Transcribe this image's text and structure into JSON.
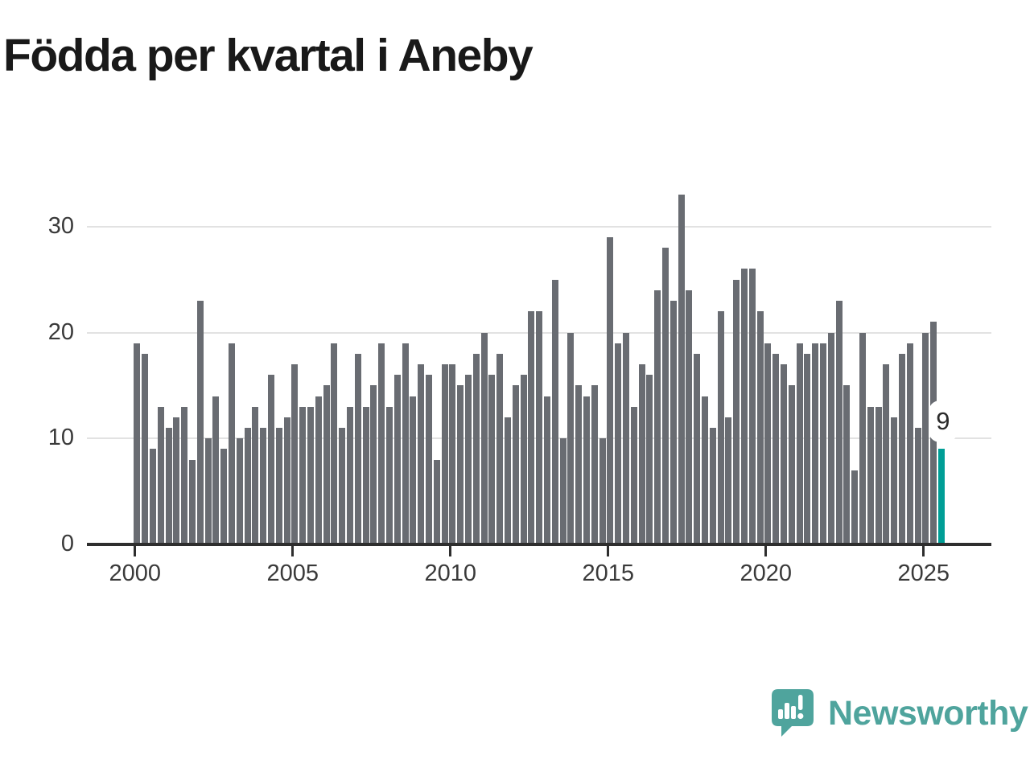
{
  "title": "Födda per kvartal i Aneby",
  "logo": {
    "text": "Newsworthy",
    "icon": "newsworthy-bubble-chart-icon"
  },
  "colors": {
    "bar": "#696C72",
    "highlight": "#009E96",
    "axis": "#2E2E2E",
    "grid": "#E2E2E2",
    "axis_text": "#3A3A3A",
    "title_text": "#191919",
    "logo_teal": "#4FA49D",
    "value_label_bg": "#FFFFFF",
    "value_label_text": "#2B2B2B"
  },
  "chart_data": {
    "type": "bar",
    "title": "Födda per kvartal i Aneby",
    "x_start": "2000-Q1",
    "x_end": "2025-Q3",
    "xticks": [
      "2000",
      "2005",
      "2010",
      "2015",
      "2020",
      "2025"
    ],
    "yticks": [
      0,
      10,
      20,
      30
    ],
    "ylim": [
      0,
      33
    ],
    "grid": "horizontal",
    "legend": "none",
    "values": [
      19,
      18,
      9,
      13,
      11,
      12,
      13,
      8,
      23,
      10,
      14,
      9,
      19,
      10,
      11,
      13,
      11,
      16,
      11,
      12,
      17,
      13,
      13,
      14,
      15,
      19,
      11,
      13,
      18,
      13,
      15,
      19,
      13,
      16,
      19,
      14,
      17,
      16,
      8,
      17,
      17,
      15,
      16,
      18,
      20,
      16,
      18,
      12,
      15,
      16,
      22,
      22,
      14,
      25,
      10,
      20,
      15,
      14,
      15,
      10,
      29,
      19,
      20,
      13,
      17,
      16,
      24,
      28,
      23,
      33,
      24,
      18,
      14,
      11,
      22,
      12,
      25,
      26,
      26,
      22,
      19,
      18,
      17,
      15,
      19,
      18,
      19,
      19,
      20,
      23,
      15,
      7,
      20,
      13,
      13,
      17,
      12,
      18,
      19,
      11,
      20,
      21,
      9
    ],
    "highlight": {
      "index": 102,
      "quarter": "2025-Q3",
      "value": 9,
      "label": "9"
    }
  }
}
